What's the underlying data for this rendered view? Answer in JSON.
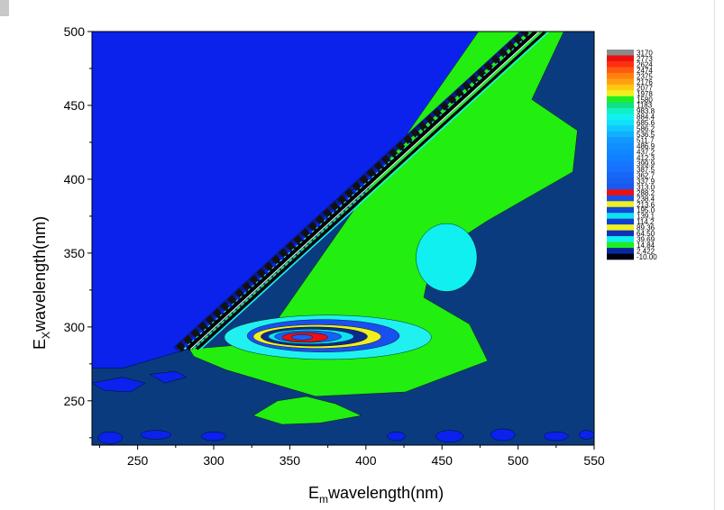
{
  "chart_data": {
    "type": "heatmap",
    "subtype": "filled-contour",
    "xlabel": {
      "main": "E",
      "sub": "m",
      "rest": "wavelength(nm)"
    },
    "ylabel": {
      "main": "E",
      "sub": "X",
      "rest": "wavelength(nm)"
    },
    "xlim": [
      220,
      550
    ],
    "ylim": [
      220,
      500
    ],
    "xticks": [
      "250",
      "300",
      "350",
      "400",
      "450",
      "500",
      "550"
    ],
    "yticks": [
      "250",
      "300",
      "350",
      "400",
      "450",
      "500"
    ],
    "xtick_values": [
      250,
      300,
      350,
      400,
      450,
      500,
      550
    ],
    "ytick_values": [
      250,
      300,
      350,
      400,
      450,
      500
    ],
    "legend_placement": "right",
    "legend_levels": [
      {
        "label": "3170",
        "color": "#8a8a8a"
      },
      {
        "label": "2773",
        "color": "#ee1010"
      },
      {
        "label": "2624",
        "color": "#ff3010"
      },
      {
        "label": "2474",
        "color": "#ff5a10"
      },
      {
        "label": "2375",
        "color": "#ff8010"
      },
      {
        "label": "2176",
        "color": "#ffa010"
      },
      {
        "label": "2077",
        "color": "#ffc810"
      },
      {
        "label": "1978",
        "color": "#f0f020"
      },
      {
        "label": "1580",
        "color": "#20ee20"
      },
      {
        "label": "1183",
        "color": "#10e080"
      },
      {
        "label": "983.8",
        "color": "#10f0c0"
      },
      {
        "label": "884.4",
        "color": "#10f0f0"
      },
      {
        "label": "685.6",
        "color": "#10e0f8"
      },
      {
        "label": "586.2",
        "color": "#10c8ff"
      },
      {
        "label": "536.5",
        "color": "#10b0ff"
      },
      {
        "label": "511.7",
        "color": "#1098ff"
      },
      {
        "label": "486.9",
        "color": "#1090ff"
      },
      {
        "label": "437.2",
        "color": "#1088ff"
      },
      {
        "label": "412.3",
        "color": "#1080ff"
      },
      {
        "label": "399.9",
        "color": "#1478ff"
      },
      {
        "label": "387.5",
        "color": "#1870ff"
      },
      {
        "label": "362.7",
        "color": "#1868f8"
      },
      {
        "label": "337.9",
        "color": "#1860f0"
      },
      {
        "label": "313.0",
        "color": "#1858f0"
      },
      {
        "label": "288.2",
        "color": "#ee1010"
      },
      {
        "label": "238.4",
        "color": "#1850e8"
      },
      {
        "label": "213.6",
        "color": "#f0f020"
      },
      {
        "label": "195.0",
        "color": "#1048d8"
      },
      {
        "label": "139.1",
        "color": "#10e0f0"
      },
      {
        "label": "114.2",
        "color": "#1040d0"
      },
      {
        "label": "89.36",
        "color": "#f0f020"
      },
      {
        "label": "64.50",
        "color": "#1030b8"
      },
      {
        "label": "39.69",
        "color": "#10f0f0"
      },
      {
        "label": "14.84",
        "color": "#20ee20"
      },
      {
        "label": "2.422",
        "color": "#0828a0"
      },
      {
        "label": "-10.00",
        "color": "#000010"
      }
    ],
    "background_color": "#0a3b7e",
    "regions": [
      {
        "name": "low-blue-region",
        "color": "#0a22ec",
        "points": [
          [
            220,
            500
          ],
          [
            512,
            500
          ],
          [
            283,
            285
          ],
          [
            260,
            278
          ],
          [
            240,
            272
          ],
          [
            220,
            272
          ]
        ]
      },
      {
        "name": "green-region",
        "color": "#22ee10",
        "points": [
          [
            331,
            289
          ],
          [
            474,
            500
          ],
          [
            530,
            500
          ],
          [
            509,
            454
          ],
          [
            539,
            433
          ],
          [
            536,
            405
          ],
          [
            480,
            372
          ],
          [
            444,
            348
          ],
          [
            438,
            320
          ],
          [
            468,
            302
          ],
          [
            480,
            277
          ],
          [
            426,
            256
          ],
          [
            367,
            253
          ],
          [
            308,
            271
          ],
          [
            287,
            280
          ],
          [
            284,
            285
          ]
        ]
      },
      {
        "name": "lower-green-blob",
        "color": "#22ee10",
        "points": [
          [
            326,
            240
          ],
          [
            342,
            250
          ],
          [
            361,
            253
          ],
          [
            380,
            248
          ],
          [
            397,
            240
          ],
          [
            370,
            235
          ],
          [
            345,
            234
          ]
        ]
      },
      {
        "name": "left-blue-patch-1",
        "color": "#0a22ec",
        "points": [
          [
            220,
            262
          ],
          [
            240,
            266
          ],
          [
            255,
            262
          ],
          [
            245,
            256
          ],
          [
            228,
            257
          ]
        ]
      },
      {
        "name": "left-blue-patch-2",
        "color": "#0a22ec",
        "points": [
          [
            258,
            268
          ],
          [
            275,
            270
          ],
          [
            282,
            266
          ],
          [
            268,
            262
          ]
        ]
      }
    ],
    "ellipses": [
      {
        "name": "cyan-blob",
        "color": "#10f0f0",
        "cx": 453,
        "cy": 347,
        "rx": 20,
        "ry": 23
      },
      {
        "name": "peak-cyan",
        "color": "#20f0f0",
        "cx": 375,
        "cy": 293,
        "rx": 68,
        "ry": 15
      },
      {
        "name": "peak-blue",
        "color": "#1850f0",
        "cx": 372,
        "cy": 294,
        "rx": 50,
        "ry": 11
      },
      {
        "name": "peak-yellow",
        "color": "#f0f020",
        "cx": 368,
        "cy": 293.5,
        "rx": 42,
        "ry": 8
      },
      {
        "name": "peak-navy",
        "color": "#0a2a90",
        "cx": 366,
        "cy": 293.5,
        "rx": 35,
        "ry": 6.5
      },
      {
        "name": "peak-cyan-inner",
        "color": "#10e0f0",
        "cx": 364,
        "cy": 293.5,
        "rx": 28,
        "ry": 5
      },
      {
        "name": "peak-blue-inner",
        "color": "#1860f8",
        "cx": 362,
        "cy": 293.5,
        "rx": 22,
        "ry": 4
      },
      {
        "name": "peak-red",
        "color": "#ee1010",
        "cx": 360,
        "cy": 293,
        "rx": 15,
        "ry": 3.2
      },
      {
        "name": "peak-center",
        "color": "#1860f8",
        "cx": 358,
        "cy": 293,
        "rx": 7,
        "ry": 1.8
      },
      {
        "name": "bottom-blue-1",
        "color": "#0a22ec",
        "cx": 232,
        "cy": 225,
        "rx": 8,
        "ry": 4
      },
      {
        "name": "bottom-blue-2",
        "color": "#0a22ec",
        "cx": 262,
        "cy": 227,
        "rx": 10,
        "ry": 3
      },
      {
        "name": "bottom-blue-3",
        "color": "#0a22ec",
        "cx": 300,
        "cy": 226,
        "rx": 8,
        "ry": 3
      },
      {
        "name": "bottom-blue-4",
        "color": "#0a22ec",
        "cx": 420,
        "cy": 226,
        "rx": 6,
        "ry": 3
      },
      {
        "name": "bottom-blue-5",
        "color": "#0a22ec",
        "cx": 455,
        "cy": 226,
        "rx": 9,
        "ry": 4
      },
      {
        "name": "bottom-blue-6",
        "color": "#0a22ec",
        "cx": 490,
        "cy": 227,
        "rx": 8,
        "ry": 4
      },
      {
        "name": "bottom-blue-7",
        "color": "#0a22ec",
        "cx": 525,
        "cy": 226,
        "rx": 8,
        "ry": 3
      },
      {
        "name": "bottom-blue-8",
        "color": "#0a22ec",
        "cx": 545,
        "cy": 227,
        "rx": 5,
        "ry": 3
      }
    ],
    "scatter_band": {
      "start": [
        283,
        285
      ],
      "end": [
        512,
        500
      ]
    }
  }
}
